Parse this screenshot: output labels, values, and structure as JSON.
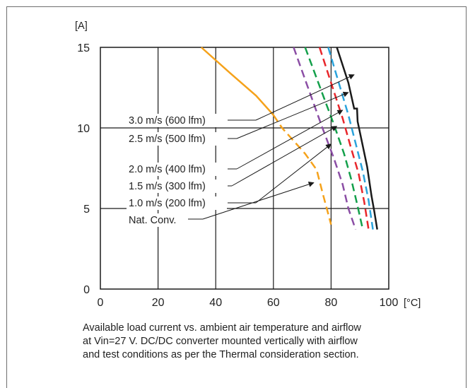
{
  "chart_data": {
    "type": "line",
    "ylabel": "[A]",
    "xlabel": "[°C]",
    "xlim": [
      0,
      100
    ],
    "ylim": [
      0,
      15
    ],
    "xticks": [
      "0",
      "20",
      "40",
      "60",
      "80",
      "100"
    ],
    "yticks": [
      "0",
      "5",
      "10",
      "15"
    ],
    "grid": true,
    "legend_placement": "center-left, with leader arrows to curves",
    "series": [
      {
        "name": "3.0 m/s (600 lfm)",
        "color": "#1a1a1a",
        "style": "solid",
        "x": [
          82,
          86,
          88,
          89,
          89.2,
          90.5,
          92.5,
          94,
          95,
          96
        ],
        "y": [
          15,
          12.8,
          11.2,
          11.2,
          10.4,
          9.3,
          7.6,
          5.8,
          4.8,
          3.7
        ]
      },
      {
        "name": "2.5 m/s (500 lfm)",
        "color": "#2aa3dc",
        "style": "dashed",
        "x": [
          79,
          83,
          86,
          89,
          91,
          93,
          94.5
        ],
        "y": [
          15,
          12.6,
          10.8,
          8.7,
          7.3,
          5.5,
          3.7
        ]
      },
      {
        "name": "2.0 m/s (400 lfm)",
        "color": "#e8262b",
        "style": "dashed",
        "x": [
          76,
          80,
          84,
          87,
          89.5,
          91.5,
          93
        ],
        "y": [
          15,
          12.8,
          10.6,
          8.7,
          7.2,
          5.4,
          3.7
        ]
      },
      {
        "name": "1.5 m/s (300 lfm)",
        "color": "#14a04b",
        "style": "dashed",
        "x": [
          71,
          76,
          81,
          84.5,
          87,
          89,
          91
        ],
        "y": [
          15,
          12.6,
          10.2,
          8.4,
          6.8,
          5.3,
          3.7
        ]
      },
      {
        "name": "1.0 m/s (200 lfm)",
        "color": "#8b4ea5",
        "style": "dashed",
        "x": [
          67,
          72,
          77,
          81,
          84,
          86,
          88.5
        ],
        "y": [
          15,
          12.5,
          10.0,
          8.1,
          6.5,
          5.0,
          3.7
        ]
      },
      {
        "name": "Nat. Conv.",
        "color": "#f5a21b",
        "style": "solid_then_dashed",
        "x": [
          35,
          45,
          54,
          60,
          63,
          66,
          71,
          75,
          77,
          80
        ],
        "y": [
          15,
          13.4,
          12,
          10.8,
          10.0,
          9.4,
          8.4,
          7.4,
          6.0,
          4.0
        ],
        "dashed_from_x": 60
      }
    ]
  },
  "caption": {
    "line1": "Available load current vs. ambient air temperature and airflow",
    "line2": "at Vin=27 V. DC/DC converter mounted vertically with airflow",
    "line3": "and test conditions as per the Thermal consideration section."
  }
}
